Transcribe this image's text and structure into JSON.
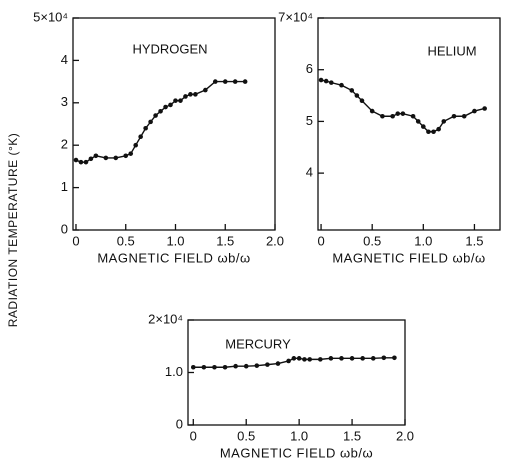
{
  "ylabel": "RADIATION TEMPERATURE (°K)",
  "chart_data": [
    {
      "type": "line",
      "annotation": "HYDROGEN",
      "xlabel": "MAGNETIC FIELD ωb/ω",
      "color": "#111111",
      "markers": true,
      "x": [
        0,
        0.05,
        0.1,
        0.15,
        0.2,
        0.3,
        0.4,
        0.5,
        0.55,
        0.6,
        0.65,
        0.7,
        0.75,
        0.8,
        0.85,
        0.9,
        0.95,
        1.0,
        1.05,
        1.1,
        1.15,
        1.2,
        1.3,
        1.4,
        1.5,
        1.6,
        1.7
      ],
      "values": [
        1.65,
        1.6,
        1.6,
        1.68,
        1.75,
        1.7,
        1.7,
        1.75,
        1.8,
        2.0,
        2.2,
        2.4,
        2.55,
        2.7,
        2.8,
        2.9,
        2.95,
        3.05,
        3.05,
        3.15,
        3.2,
        3.2,
        3.3,
        3.5,
        3.5,
        3.5,
        3.5
      ],
      "xlim": [
        -0.03,
        2.0
      ],
      "xticks": [
        0,
        0.5,
        {
          "value": 1,
          "label": "1.0"
        },
        1.5,
        {
          "value": 2,
          "label": "2.0"
        }
      ],
      "ylim": [
        0,
        5
      ],
      "yticks": [
        0,
        1,
        2,
        3,
        4,
        {
          "value": 5,
          "label": "5×10⁴"
        }
      ]
    },
    {
      "type": "line",
      "annotation": "HELIUM",
      "xlabel": "MAGNETIC FIELD ωb/ω",
      "color": "#111111",
      "markers": true,
      "x": [
        0,
        0.05,
        0.1,
        0.2,
        0.3,
        0.35,
        0.4,
        0.5,
        0.6,
        0.7,
        0.75,
        0.8,
        0.9,
        0.95,
        1.0,
        1.05,
        1.1,
        1.15,
        1.2,
        1.3,
        1.4,
        1.5,
        1.6
      ],
      "values": [
        5.8,
        5.78,
        5.75,
        5.7,
        5.6,
        5.5,
        5.4,
        5.2,
        5.1,
        5.1,
        5.15,
        5.15,
        5.1,
        5.0,
        4.9,
        4.8,
        4.8,
        4.85,
        5.0,
        5.1,
        5.1,
        5.2,
        5.25
      ],
      "xlim": [
        -0.03,
        1.75
      ],
      "xticks": [
        0,
        0.5,
        {
          "value": 1,
          "label": "1.0"
        },
        1.5
      ],
      "ylim": [
        2.9,
        7
      ],
      "yticks": [
        4,
        5,
        6,
        {
          "value": 7,
          "label": "7×10⁴"
        }
      ]
    },
    {
      "type": "line",
      "annotation": "MERCURY",
      "xlabel": "MAGNETIC FIELD ωb/ω",
      "color": "#111111",
      "markers": true,
      "x": [
        0,
        0.1,
        0.2,
        0.3,
        0.4,
        0.5,
        0.6,
        0.7,
        0.8,
        0.9,
        0.95,
        1.0,
        1.05,
        1.1,
        1.2,
        1.3,
        1.4,
        1.5,
        1.6,
        1.7,
        1.8,
        1.9
      ],
      "values": [
        1.1,
        1.1,
        1.1,
        1.1,
        1.12,
        1.12,
        1.13,
        1.15,
        1.17,
        1.22,
        1.27,
        1.27,
        1.25,
        1.25,
        1.25,
        1.27,
        1.27,
        1.27,
        1.27,
        1.27,
        1.28,
        1.28
      ],
      "xlim": [
        -0.05,
        2.0
      ],
      "xticks": [
        0,
        0.5,
        {
          "value": 1,
          "label": "1.0"
        },
        1.5,
        {
          "value": 2,
          "label": "2.0"
        }
      ],
      "ylim": [
        0,
        2
      ],
      "yticks": [
        0,
        {
          "value": 1,
          "label": "1.0"
        },
        {
          "value": 2,
          "label": "2×10⁴"
        }
      ]
    }
  ]
}
